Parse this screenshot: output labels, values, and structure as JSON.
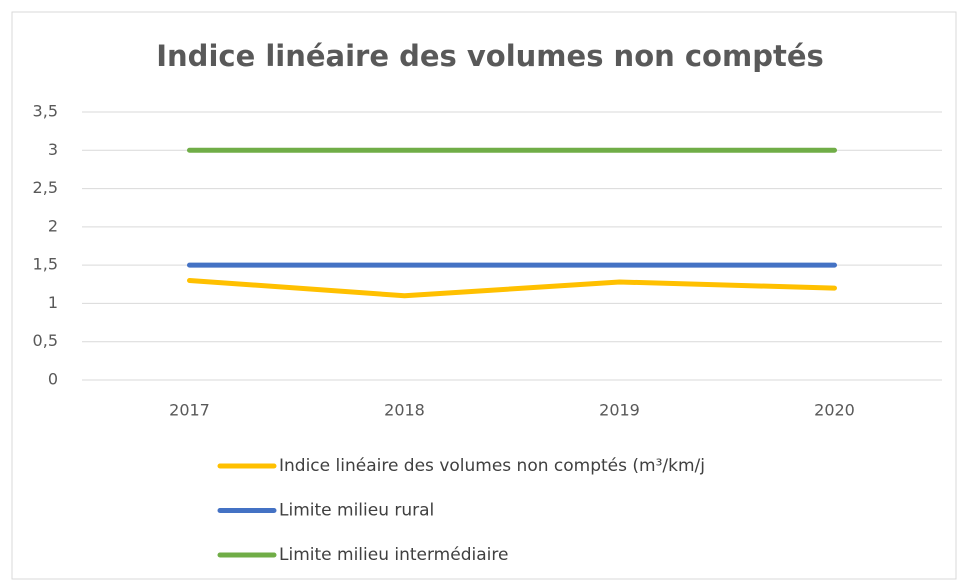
{
  "chart_data": {
    "type": "line",
    "title": "Indice linéaire des volumes non comptés",
    "categories": [
      "2017",
      "2018",
      "2019",
      "2020"
    ],
    "series": [
      {
        "name": "Indice linéaire des volumes non comptés (m³/km/j",
        "color": "#ffc000",
        "values": [
          1.3,
          1.1,
          1.28,
          1.2
        ]
      },
      {
        "name": "Limite milieu rural",
        "color": "#4472c4",
        "values": [
          1.5,
          1.5,
          1.5,
          1.5
        ]
      },
      {
        "name": "Limite milieu intermédiaire",
        "color": "#70ad47",
        "values": [
          3,
          3,
          3,
          3
        ]
      }
    ],
    "ylim": [
      0,
      3.5
    ],
    "yticks": [
      0,
      {
        "value": 0.5,
        "label": "0,5"
      },
      1,
      {
        "value": 1.5,
        "label": "1,5"
      },
      2,
      {
        "value": 2.5,
        "label": "2,5"
      },
      3,
      {
        "value": 3.5,
        "label": "3,5"
      }
    ],
    "grid": true,
    "legend": "bottom"
  }
}
